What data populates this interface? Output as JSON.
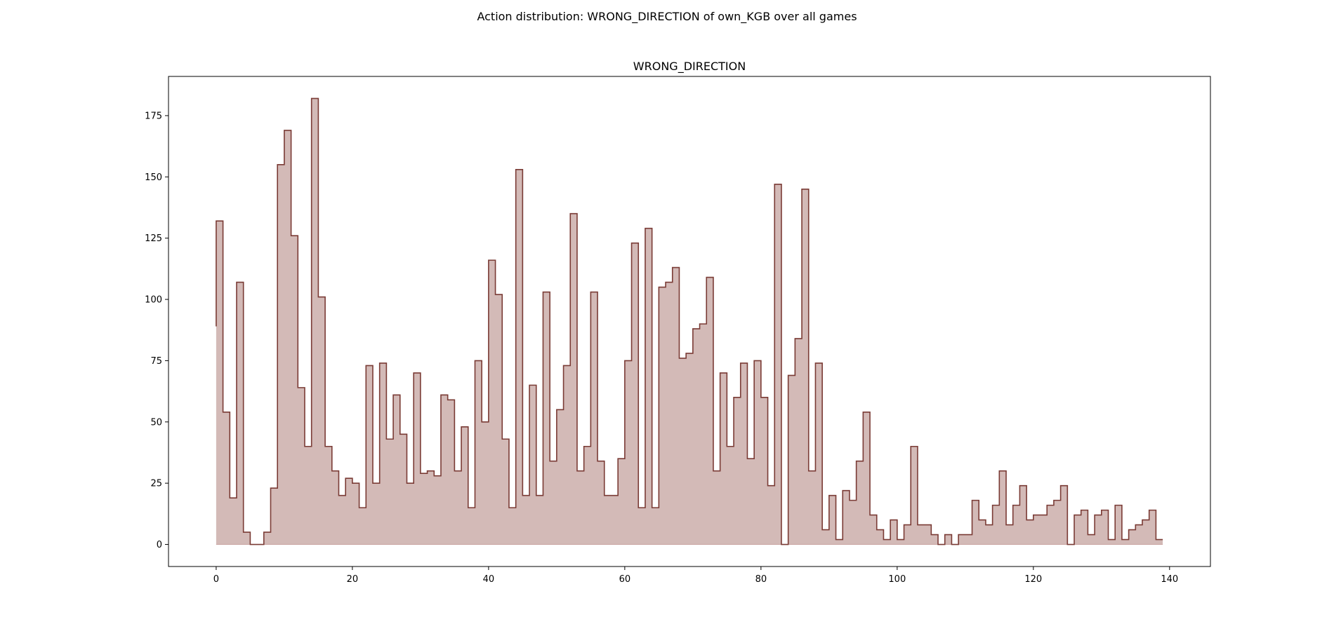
{
  "figure": {
    "suptitle": "Action distribution: WRONG_DIRECTION of own_KGB over all games"
  },
  "chart_data": {
    "type": "area",
    "title": "WRONG_DIRECTION",
    "xlabel": "",
    "ylabel": "",
    "xlim": [
      -7,
      146
    ],
    "ylim": [
      -9,
      191
    ],
    "xticks": [
      0,
      20,
      40,
      60,
      80,
      100,
      120,
      140
    ],
    "yticks": [
      0,
      25,
      50,
      75,
      100,
      125,
      150,
      175
    ],
    "grid": false,
    "step": "post",
    "colors": {
      "line": "#7a3b35",
      "fill": "#d3bab7"
    },
    "x_start": 0,
    "first_value": 89,
    "values": [
      132,
      54,
      19,
      107,
      5,
      0,
      0,
      5,
      23,
      155,
      169,
      126,
      64,
      40,
      182,
      101,
      40,
      30,
      20,
      27,
      25,
      15,
      73,
      25,
      74,
      43,
      61,
      45,
      25,
      70,
      29,
      30,
      28,
      61,
      59,
      30,
      48,
      15,
      75,
      50,
      116,
      102,
      43,
      15,
      153,
      20,
      65,
      20,
      103,
      34,
      55,
      73,
      135,
      30,
      40,
      103,
      34,
      20,
      20,
      35,
      75,
      123,
      15,
      129,
      15,
      105,
      107,
      113,
      76,
      78,
      88,
      90,
      109,
      30,
      70,
      40,
      60,
      74,
      35,
      75,
      60,
      24,
      147,
      0,
      69,
      84,
      145,
      30,
      74,
      6,
      20,
      2,
      22,
      18,
      34,
      54,
      12,
      6,
      2,
      10,
      2,
      8,
      40,
      8,
      8,
      4,
      0,
      4,
      0,
      4,
      4,
      18,
      10,
      8,
      16,
      30,
      8,
      16,
      24,
      10,
      12,
      12,
      16,
      18,
      24,
      0,
      12,
      14,
      4,
      12,
      14,
      2,
      16,
      2,
      6,
      8,
      10,
      14,
      2
    ]
  }
}
